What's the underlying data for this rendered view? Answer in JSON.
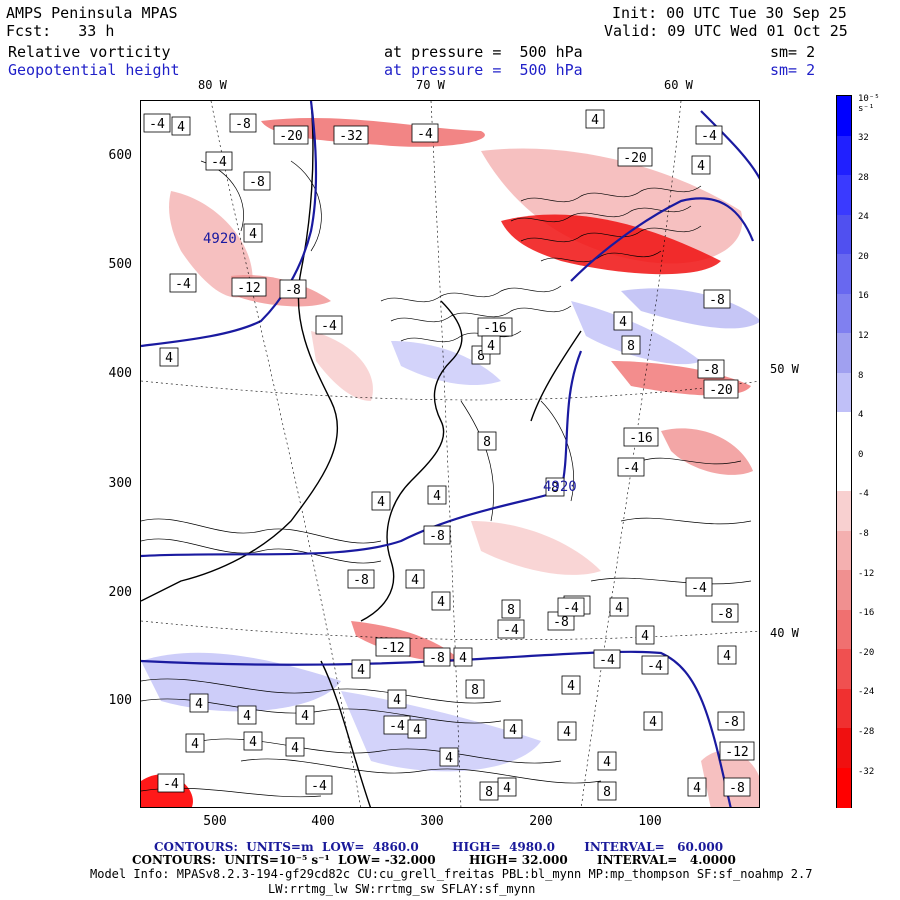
{
  "header": {
    "model": "AMPS Peninsula MPAS",
    "init": "Init: 00 UTC Tue 30 Sep 25",
    "fcst": "Fcst:   33 h",
    "valid": "Valid: 09 UTC Wed 01 Oct 25",
    "field1_name": "Relative vorticity",
    "field1_pressure": "at pressure =  500 hPa",
    "field1_sm": "sm= 2",
    "field2_name": "Geopotential height",
    "field2_pressure": "at pressure =  500 hPa",
    "field2_sm": "sm= 2"
  },
  "longitude_labels": [
    "80 W",
    "70 W",
    "60 W",
    "50 W",
    "40 W"
  ],
  "y_ticks": [
    "600",
    "500",
    "400",
    "300",
    "200",
    "100"
  ],
  "x_ticks": [
    "500",
    "400",
    "300",
    "200",
    "100"
  ],
  "colorbar": {
    "unit_label": "10⁻⁵ s⁻¹",
    "tick_labels": [
      "32",
      "28",
      "24",
      "20",
      "16",
      "12",
      "8",
      "4",
      "0",
      "-4",
      "-8",
      "-12",
      "-16",
      "-20",
      "-24",
      "-28",
      "-32"
    ],
    "colors": [
      "#0000ff",
      "#2020ff",
      "#3a3aff",
      "#5050f0",
      "#6868f0",
      "#8080f0",
      "#a0a0f0",
      "#c0c0f8",
      "#ffffff",
      "#ffffff",
      "#f8d0d0",
      "#f4b0b0",
      "#f09090",
      "#f07070",
      "#f05050",
      "#f03030",
      "#f01010",
      "#ff0000"
    ]
  },
  "contour_labels": [
    {
      "t": "-4"
    },
    {
      "t": "4"
    },
    {
      "t": "-8"
    },
    {
      "t": "-20"
    },
    {
      "t": "-32"
    },
    {
      "t": "-4"
    },
    {
      "t": "4"
    },
    {
      "t": "-20"
    },
    {
      "t": "-4"
    },
    {
      "t": "4"
    },
    {
      "t": "-4"
    },
    {
      "t": "-8"
    },
    {
      "t": "4"
    },
    {
      "t": "-4"
    },
    {
      "t": "-12"
    },
    {
      "t": "-8"
    },
    {
      "t": "-4"
    },
    {
      "t": "-8"
    },
    {
      "t": "-16"
    },
    {
      "t": "4"
    },
    {
      "t": "-8"
    },
    {
      "t": "4"
    },
    {
      "t": "8"
    },
    {
      "t": "8"
    },
    {
      "t": "4"
    },
    {
      "t": "4"
    },
    {
      "t": "8"
    },
    {
      "t": "4"
    },
    {
      "t": "-20"
    },
    {
      "t": "-16"
    },
    {
      "t": "-4"
    },
    {
      "t": "8"
    },
    {
      "t": "-8"
    },
    {
      "t": "4"
    },
    {
      "t": "8"
    },
    {
      "t": "-8"
    },
    {
      "t": "4"
    },
    {
      "t": "-8"
    },
    {
      "t": "-4"
    },
    {
      "t": "-4"
    },
    {
      "t": "-8"
    },
    {
      "t": "4"
    },
    {
      "t": "-4"
    },
    {
      "t": "-12"
    },
    {
      "t": "-8"
    },
    {
      "t": "4"
    },
    {
      "t": "-4"
    },
    {
      "t": "4"
    },
    {
      "t": "4"
    },
    {
      "t": "-4"
    },
    {
      "t": "4"
    },
    {
      "t": "8"
    },
    {
      "t": "4"
    },
    {
      "t": "4"
    },
    {
      "t": "4"
    },
    {
      "t": "-4"
    },
    {
      "t": "4"
    },
    {
      "t": "4"
    },
    {
      "t": "4"
    },
    {
      "t": "-8"
    },
    {
      "t": "4"
    },
    {
      "t": "4"
    },
    {
      "t": "4"
    },
    {
      "t": "-12"
    },
    {
      "t": "-4"
    },
    {
      "t": "-4"
    },
    {
      "t": "4"
    },
    {
      "t": "4"
    },
    {
      "t": "8"
    },
    {
      "t": "8"
    },
    {
      "t": "4"
    },
    {
      "t": "-8"
    },
    {
      "t": "4"
    },
    {
      "t": "4"
    },
    {
      "t": "4"
    },
    {
      "t": "4"
    },
    {
      "t": "-4"
    }
  ],
  "height_labels": [
    "4920",
    "4920"
  ],
  "footer": {
    "contours1": "CONTOURS:  UNITS=m  LOW=  4860.0        HIGH=  4980.0       INTERVAL=   60.000",
    "contours2": "CONTOURS:  UNITS=10⁻⁵ s⁻¹  LOW= -32.000        HIGH= 32.000       INTERVAL=   4.0000",
    "model_info": "Model Info: MPASv8.2.3-194-gf29cd82c CU:cu_grell_freitas PBL:bl_mynn MP:mp_thompson SF:sf_noahmp 2.7",
    "model_info2": "LW:rrtmg_lw SW:rrtmg_sw SFLAY:sf_mynn"
  }
}
